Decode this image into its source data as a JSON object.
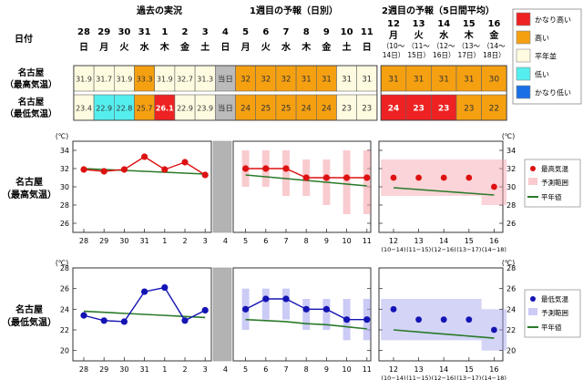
{
  "header": {
    "sec_past": "過去の実況",
    "sec_week1": "1週目の予報（日別）",
    "sec_week2": "2週目の予報（5日間平均）",
    "date_label": "日付",
    "row_high_label": [
      "名古屋",
      "（最高気温）"
    ],
    "row_low_label": [
      "名古屋",
      "（最低気温）"
    ],
    "today_label": "当日"
  },
  "days": [
    {
      "d": "28",
      "w": "日"
    },
    {
      "d": "29",
      "w": "月"
    },
    {
      "d": "30",
      "w": "火"
    },
    {
      "d": "31",
      "w": "水"
    },
    {
      "d": "1",
      "w": "木"
    },
    {
      "d": "2",
      "w": "金"
    },
    {
      "d": "3",
      "w": "土"
    },
    {
      "d": "4",
      "w": "日"
    },
    {
      "d": "5",
      "w": "月"
    },
    {
      "d": "6",
      "w": "火"
    },
    {
      "d": "7",
      "w": "水"
    },
    {
      "d": "8",
      "w": "木"
    },
    {
      "d": "9",
      "w": "金"
    },
    {
      "d": "10",
      "w": "土"
    },
    {
      "d": "11",
      "w": "日"
    }
  ],
  "week2_days": [
    {
      "d": "12",
      "w": "月",
      "r": "（10～",
      "r2": "14日）",
      "ax": "(10−14)"
    },
    {
      "d": "13",
      "w": "火",
      "r": "（11～",
      "r2": "15日）",
      "ax": "(11−15)"
    },
    {
      "d": "14",
      "w": "水",
      "r": "（12～",
      "r2": "16日）",
      "ax": "(12−16)"
    },
    {
      "d": "15",
      "w": "木",
      "r": "（13～",
      "r2": "17日）",
      "ax": "(13−17)"
    },
    {
      "d": "16",
      "w": "金",
      "r": "（14～",
      "r2": "18日）",
      "ax": "(14−18)"
    }
  ],
  "table": {
    "high": [
      "31.9",
      "31.7",
      "31.9",
      "33.3",
      "31.9",
      "32.7",
      "31.3",
      "当日",
      "32",
      "32",
      "32",
      "31",
      "31",
      "31",
      "31"
    ],
    "high_colors": [
      "n",
      "n",
      "n",
      "h",
      "n",
      "n",
      "n",
      "t",
      "h",
      "h",
      "h",
      "h",
      "h",
      "n",
      "n"
    ],
    "low": [
      "23.4",
      "22.9",
      "22.8",
      "25.7",
      "26.1",
      "22.9",
      "23.9",
      "当日",
      "24",
      "25",
      "25",
      "24",
      "24",
      "23",
      "23"
    ],
    "low_colors": [
      "n",
      "l",
      "l",
      "h",
      "vh",
      "n",
      "n",
      "t",
      "h",
      "h",
      "h",
      "h",
      "h",
      "n",
      "n"
    ],
    "w2_high": [
      "31",
      "31",
      "31",
      "31",
      "30"
    ],
    "w2_high_colors": [
      "h",
      "h",
      "h",
      "h",
      "h"
    ],
    "w2_low": [
      "24",
      "23",
      "23",
      "23",
      "22"
    ],
    "w2_low_colors": [
      "vh",
      "vh",
      "vh",
      "h",
      "h"
    ]
  },
  "legend": {
    "items": [
      {
        "label": "かなり高い",
        "color": "#ee2222"
      },
      {
        "label": "高い",
        "color": "#f5a011"
      },
      {
        "label": "平年並",
        "color": "#fffbe0"
      },
      {
        "label": "低い",
        "color": "#55eeee"
      },
      {
        "label": "かなり低い",
        "color": "#1b6fe6"
      }
    ]
  },
  "colors": {
    "vh": "#ee2222",
    "h": "#f5a011",
    "n": "#fffbe0",
    "l": "#55eeee",
    "vl": "#1b6fe6",
    "t": "#bbbbbb"
  },
  "chart_data": [
    {
      "type": "line",
      "title": "名古屋（最高気温）",
      "ylabel": "(℃)",
      "ylim": [
        25,
        35
      ],
      "yticks": [
        26,
        28,
        30,
        32,
        34
      ],
      "categories": [
        "28",
        "29",
        "30",
        "31",
        "1",
        "2",
        "3",
        "4",
        "5",
        "6",
        "7",
        "8",
        "9",
        "10",
        "11"
      ],
      "series": [
        {
          "name": "最高気温",
          "values": [
            31.9,
            31.7,
            31.9,
            33.3,
            31.9,
            32.7,
            31.3,
            null,
            32,
            32,
            32,
            31,
            31,
            31,
            31
          ]
        },
        {
          "name": "平年値",
          "values": [
            32.0,
            31.9,
            31.8,
            31.7,
            31.6,
            31.5,
            31.4,
            null,
            31.3,
            31.1,
            30.9,
            30.7,
            30.5,
            30.3,
            30.1
          ]
        },
        {
          "name": "予測範囲",
          "low": [
            null,
            null,
            null,
            null,
            null,
            null,
            null,
            null,
            30,
            30,
            29,
            29,
            28,
            27,
            27
          ],
          "high": [
            null,
            null,
            null,
            null,
            null,
            null,
            null,
            null,
            34,
            34,
            34,
            33,
            33,
            34,
            34
          ]
        }
      ],
      "week2": {
        "categories": [
          "12",
          "13",
          "14",
          "15",
          "16"
        ],
        "values": [
          31,
          31,
          31,
          31,
          30
        ],
        "normal": [
          29.9,
          29.7,
          29.5,
          29.3,
          29.1
        ],
        "range_low": [
          29,
          29,
          29,
          29,
          28
        ],
        "range_high": [
          33,
          33,
          33,
          33,
          33
        ]
      },
      "legend": [
        "最高気温",
        "予測範囲",
        "平年値"
      ]
    },
    {
      "type": "line",
      "title": "名古屋（最低気温）",
      "ylabel": "(℃)",
      "ylim": [
        19,
        28
      ],
      "yticks": [
        20,
        22,
        24,
        26,
        28
      ],
      "categories": [
        "28",
        "29",
        "30",
        "31",
        "1",
        "2",
        "3",
        "4",
        "5",
        "6",
        "7",
        "8",
        "9",
        "10",
        "11"
      ],
      "series": [
        {
          "name": "最低気温",
          "values": [
            23.4,
            22.9,
            22.8,
            25.7,
            26.1,
            22.9,
            23.9,
            null,
            24,
            25,
            25,
            24,
            24,
            23,
            23
          ]
        },
        {
          "name": "平年値",
          "values": [
            23.8,
            23.7,
            23.6,
            23.5,
            23.4,
            23.3,
            23.2,
            null,
            23.0,
            22.9,
            22.8,
            22.6,
            22.5,
            22.3,
            22.1
          ]
        },
        {
          "name": "予測範囲",
          "low": [
            null,
            null,
            null,
            null,
            null,
            null,
            null,
            null,
            22,
            23,
            23,
            22,
            22,
            21,
            21
          ],
          "high": [
            null,
            null,
            null,
            null,
            null,
            null,
            null,
            null,
            26,
            26,
            26,
            25,
            25,
            25,
            25
          ]
        }
      ],
      "week2": {
        "categories": [
          "12",
          "13",
          "14",
          "15",
          "16"
        ],
        "values": [
          24,
          23,
          23,
          23,
          22
        ],
        "normal": [
          22.0,
          21.8,
          21.6,
          21.4,
          21.2
        ],
        "range_low": [
          21,
          21,
          21,
          21,
          20
        ],
        "range_high": [
          25,
          25,
          25,
          25,
          24
        ]
      },
      "legend": [
        "最低気温",
        "予測範囲",
        "平年値"
      ]
    }
  ]
}
